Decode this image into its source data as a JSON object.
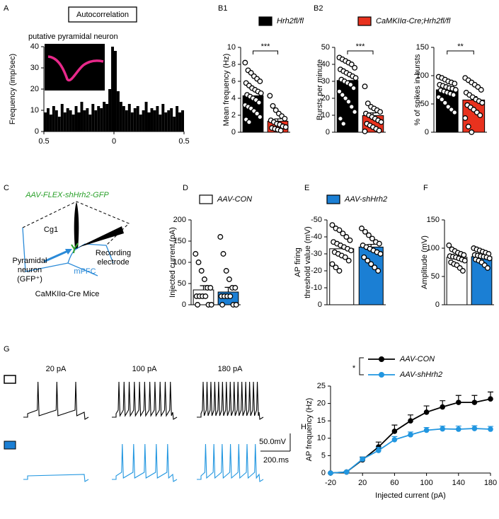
{
  "panels": [
    "A",
    "B1",
    "B2",
    "C",
    "D",
    "E",
    "F",
    "G",
    "H"
  ],
  "chart_data": [
    {
      "type": "histogram",
      "title": "Autocorrelation",
      "subtitle": "putative pyramidal neuron",
      "ylabel": "Frequency (imp/sec)",
      "bins": [
        -0.5,
        -0.48,
        -0.46,
        -0.44,
        -0.42,
        -0.4,
        -0.38,
        -0.36,
        -0.34,
        -0.32,
        -0.3,
        -0.28,
        -0.26,
        -0.24,
        -0.22,
        -0.2,
        -0.18,
        -0.16,
        -0.14,
        -0.12,
        -0.1,
        -0.08,
        -0.06,
        -0.04,
        -0.02,
        0,
        0.02,
        0.04,
        0.06,
        0.08,
        0.1,
        0.12,
        0.14,
        0.16,
        0.18,
        0.2,
        0.22,
        0.24,
        0.26,
        0.28,
        0.3,
        0.32,
        0.34,
        0.36,
        0.38,
        0.4,
        0.42,
        0.44,
        0.46,
        0.48,
        0.5
      ],
      "values": [
        9,
        11,
        8,
        12,
        10,
        7,
        13,
        9,
        11,
        10,
        8,
        12,
        9,
        14,
        10,
        11,
        8,
        13,
        10,
        12,
        11,
        14,
        13,
        20,
        40,
        38,
        19,
        14,
        12,
        10,
        13,
        9,
        11,
        12,
        8,
        10,
        14,
        9,
        11,
        10,
        12,
        8,
        13,
        9,
        10,
        11,
        7,
        12,
        9,
        10
      ],
      "color": "#000000",
      "xlim": [
        -0.5,
        0.5
      ],
      "xticks": [
        {
          "value": -0.5,
          "label": "0.5"
        },
        0,
        0.5
      ],
      "ylim": [
        0,
        40
      ],
      "yticks": [
        0,
        10,
        20,
        30,
        40
      ]
    },
    {
      "type": "bar",
      "ylabel": "Mean frequency (Hz)",
      "legend": [
        {
          "name": "Hrh2fl/fl",
          "color": "#000000"
        },
        {
          "name": "CaMKIIα-Cre;Hrh2fl/fl",
          "color": "#e8321e"
        }
      ],
      "values": [
        4.3,
        1.3
      ],
      "errors": [
        0.35,
        0.28
      ],
      "colors": [
        "#000000",
        "#e8321e"
      ],
      "points": [
        [
          8.2,
          7.3,
          7.0,
          6.6,
          6.3,
          6.0,
          5.8,
          5.5,
          5.2,
          5.0,
          4.8,
          4.6,
          4.4,
          4.2,
          4.0,
          3.8,
          3.5,
          3.2,
          3.0,
          2.8,
          2.5,
          2.2,
          1.8,
          1.5,
          1.2
        ],
        [
          4.3,
          3.1,
          2.6,
          2.2,
          1.9,
          1.6,
          1.4,
          1.2,
          1.0,
          0.9,
          0.7,
          0.6,
          0.5,
          0.4,
          0.3,
          0.2
        ]
      ],
      "ylim": [
        0,
        10
      ],
      "yticks": [
        0,
        2,
        4,
        6,
        8,
        10
      ],
      "significance": "***"
    },
    {
      "type": "bar",
      "ylabel": "Bursts per minute",
      "values": [
        30.5,
        9.8
      ],
      "errors": [
        2.2,
        1.6
      ],
      "colors": [
        "#000000",
        "#e8321e"
      ],
      "points": [
        [
          44,
          43,
          42,
          41,
          40,
          38,
          37,
          36,
          35,
          34,
          33,
          32,
          31,
          30,
          29,
          28,
          26,
          24,
          22,
          20,
          18,
          15,
          12,
          8,
          5
        ],
        [
          27,
          17,
          15,
          14,
          13,
          12,
          11,
          10,
          9,
          8,
          7,
          6,
          5,
          4,
          3,
          2,
          1,
          0.5
        ]
      ],
      "ylim": [
        0,
        50
      ],
      "yticks": [
        0,
        10,
        20,
        30,
        40,
        50
      ],
      "significance": "***"
    },
    {
      "type": "bar",
      "ylabel": "% of spikes in bursts",
      "values": [
        75,
        57
      ],
      "errors": [
        4,
        6
      ],
      "colors": [
        "#000000",
        "#e8321e"
      ],
      "points": [
        [
          98,
          96,
          93,
          90,
          88,
          86,
          84,
          82,
          80,
          78,
          77,
          75,
          74,
          72,
          70,
          68,
          66,
          62,
          58,
          52,
          45,
          40,
          35
        ],
        [
          96,
          92,
          88,
          84,
          80,
          75,
          70,
          66,
          62,
          58,
          55,
          52,
          48,
          44,
          40,
          35,
          30,
          25,
          10,
          0
        ]
      ],
      "ylim": [
        0,
        150
      ],
      "yticks": [
        0,
        50,
        100,
        150
      ],
      "significance": "**"
    },
    {
      "type": "bar",
      "ylabel": "Injected current (pA)",
      "legend": [
        {
          "name": "AAV-CON",
          "color": "#ffffff"
        },
        {
          "name": "AAV-shHrh2",
          "color": "#1b7fd4"
        }
      ],
      "values": [
        35,
        30
      ],
      "errors": [
        10,
        11
      ],
      "colors": [
        "#ffffff",
        "#1b7fd4"
      ],
      "points": [
        [
          120,
          100,
          80,
          60,
          40,
          40,
          20,
          20,
          20,
          20,
          0,
          0,
          0
        ],
        [
          160,
          120,
          80,
          60,
          40,
          40,
          20,
          20,
          20,
          20,
          0,
          0,
          0
        ]
      ],
      "ylim": [
        0,
        200
      ],
      "yticks": [
        0,
        50,
        100,
        150,
        200
      ]
    },
    {
      "type": "bar",
      "ylabel": [
        "AP firing",
        "threshold value (mV)"
      ],
      "values": [
        -33,
        -34
      ],
      "errors": [
        1.5,
        1.6
      ],
      "colors": [
        "#ffffff",
        "#1b7fd4"
      ],
      "points": [
        [
          -47,
          -45,
          -44,
          -42,
          -40,
          -38,
          -37,
          -36,
          -35,
          -34,
          -33,
          -32,
          -31,
          -30,
          -29,
          -28,
          -26,
          -24,
          -22,
          -20
        ],
        [
          -45,
          -43,
          -41,
          -39,
          -37,
          -36,
          -35,
          -34,
          -33,
          -32,
          -31,
          -30,
          -28,
          -26,
          -24,
          -22,
          -20
        ]
      ],
      "ylim": [
        0,
        -50
      ],
      "yticks": [
        -50,
        -40,
        -30,
        -20,
        -10,
        0
      ]
    },
    {
      "type": "bar",
      "ylabel": "Amplitude (mV)",
      "values": [
        84,
        85
      ],
      "errors": [
        2.5,
        2.4
      ],
      "colors": [
        "#ffffff",
        "#1b7fd4"
      ],
      "points": [
        [
          105,
          98,
          95,
          92,
          90,
          88,
          86,
          85,
          84,
          82,
          80,
          78,
          75,
          72,
          70,
          65,
          60
        ],
        [
          100,
          98,
          96,
          94,
          92,
          90,
          88,
          87,
          86,
          85,
          84,
          82,
          80,
          78,
          75,
          70,
          65
        ]
      ],
      "ylim": [
        0,
        150
      ],
      "yticks": [
        0,
        50,
        100,
        150
      ]
    },
    {
      "type": "line",
      "xlabel": "Injected current (pA)",
      "ylabel": "AP frequency (Hz)",
      "significance": "*",
      "x": [
        -20,
        0,
        20,
        40,
        60,
        80,
        100,
        120,
        140,
        160,
        180
      ],
      "series": [
        {
          "name": "AAV-CON",
          "color": "#000000",
          "values": [
            0,
            0.3,
            3.8,
            7.5,
            12,
            15,
            17.5,
            19,
            20.3,
            20.3,
            21.3
          ],
          "errors": [
            0,
            0.2,
            0.8,
            1.4,
            1.8,
            1.7,
            1.8,
            1.8,
            2,
            2,
            2
          ]
        },
        {
          "name": "AAV-shHrh2",
          "color": "#2196e0",
          "values": [
            0,
            0.3,
            4,
            6.5,
            9.6,
            11,
            12.3,
            12.7,
            12.6,
            12.8,
            12.6
          ],
          "errors": [
            0,
            0.2,
            0.5,
            0.9,
            0.9,
            0.8,
            0.8,
            0.8,
            0.9,
            0.8,
            0.8
          ]
        }
      ],
      "xlim": [
        -20,
        180
      ],
      "xticks": [
        -20,
        20,
        60,
        100,
        140,
        180
      ],
      "ylim": [
        0,
        25
      ],
      "yticks": [
        0,
        5,
        10,
        15,
        20,
        25
      ]
    }
  ],
  "diagram": {
    "virus": "AAV-FLEX-shHrh2-GFP",
    "region_top": "Cg1",
    "electrode": [
      "Recording",
      "electrode"
    ],
    "neuron": [
      "Pyramidal",
      "neuron",
      "(GFP⁺)"
    ],
    "region": "mPFC",
    "mouse": "CaMKIIα-Cre Mice"
  },
  "traces": {
    "labels": [
      "20 pA",
      "100 pA",
      "180 pA"
    ],
    "rows": [
      {
        "color": "#000000",
        "spikes": [
          3,
          11,
          15
        ]
      },
      {
        "color": "#2196e0",
        "spikes": [
          0,
          5,
          7
        ]
      }
    ],
    "scale_v": "50.0mV",
    "scale_t": "200.ms"
  }
}
